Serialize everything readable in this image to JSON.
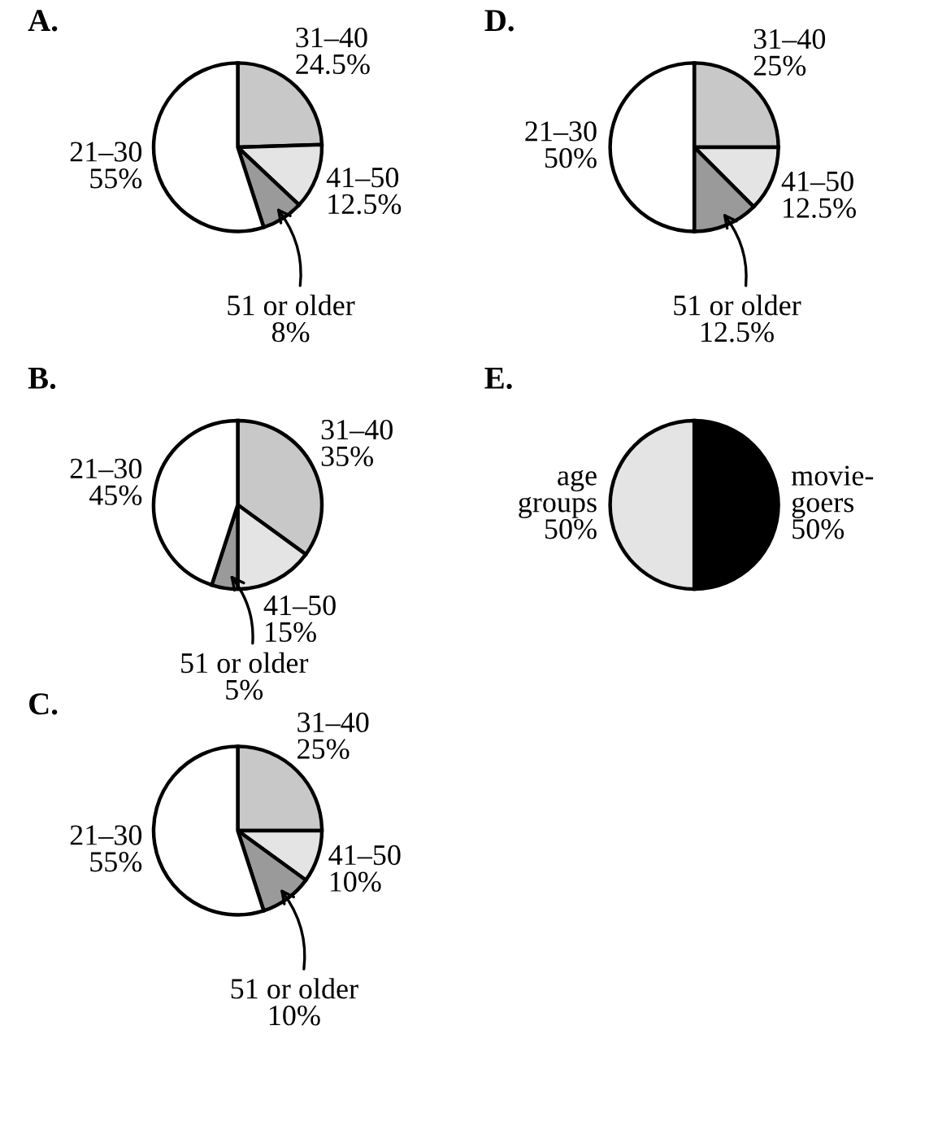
{
  "chart_data": [
    {
      "type": "pie",
      "title": "A.",
      "categories": [
        "31–40",
        "41–50",
        "51 or older",
        "21–30"
      ],
      "values": [
        24.5,
        12.5,
        8,
        55
      ],
      "value_labels": [
        "24.5%",
        "12.5%",
        "8%",
        "55%"
      ],
      "colors": [
        "#c8c8c8",
        "#e4e4e4",
        "#9a9a9a",
        "#ffffff"
      ]
    },
    {
      "type": "pie",
      "title": "D.",
      "categories": [
        "31–40",
        "41–50",
        "51 or older",
        "21–30"
      ],
      "values": [
        25,
        12.5,
        12.5,
        50
      ],
      "value_labels": [
        "25%",
        "12.5%",
        "12.5%",
        "50%"
      ],
      "colors": [
        "#c8c8c8",
        "#e4e4e4",
        "#9a9a9a",
        "#ffffff"
      ]
    },
    {
      "type": "pie",
      "title": "B.",
      "categories": [
        "31–40",
        "41–50",
        "51 or older",
        "21–30"
      ],
      "values": [
        35,
        15,
        5,
        45
      ],
      "value_labels": [
        "35%",
        "15%",
        "5%",
        "45%"
      ],
      "colors": [
        "#c8c8c8",
        "#e4e4e4",
        "#9a9a9a",
        "#ffffff"
      ]
    },
    {
      "type": "pie",
      "title": "E.",
      "categories": [
        "movie-\ngoers",
        "age\ngroups"
      ],
      "values": [
        50,
        50
      ],
      "value_labels": [
        "50%",
        "50%"
      ],
      "colors": [
        "#000000",
        "#e4e4e4"
      ]
    },
    {
      "type": "pie",
      "title": "C.",
      "categories": [
        "31–40",
        "41–50",
        "51 or older",
        "21–30"
      ],
      "values": [
        25,
        10,
        10,
        55
      ],
      "value_labels": [
        "25%",
        "10%",
        "10%",
        "55%"
      ],
      "colors": [
        "#c8c8c8",
        "#e4e4e4",
        "#9a9a9a",
        "#ffffff"
      ]
    }
  ]
}
